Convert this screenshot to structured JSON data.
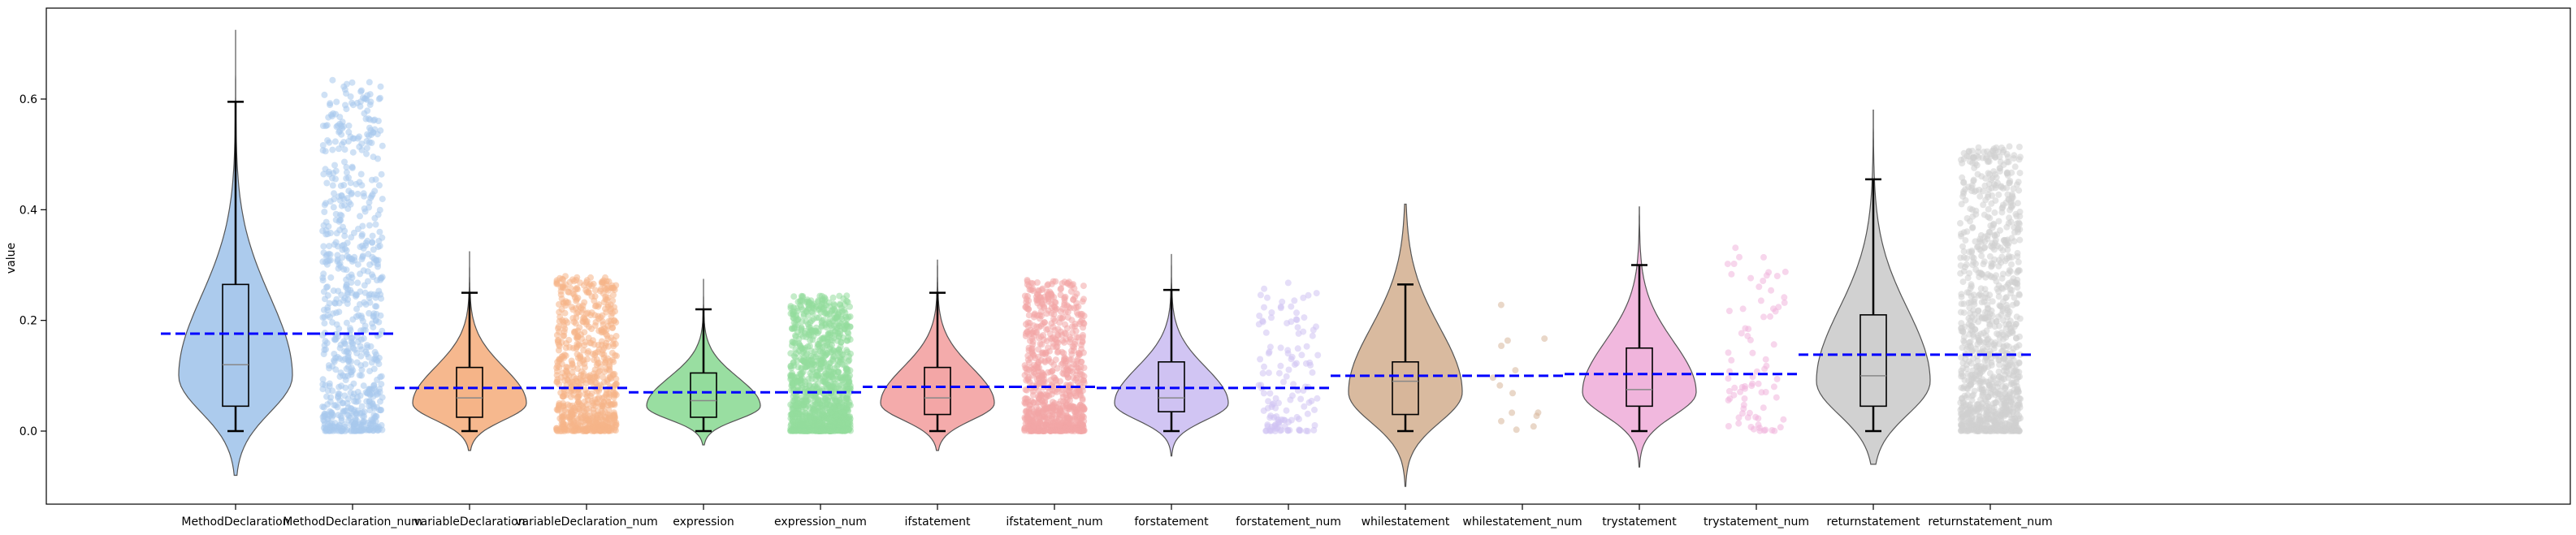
{
  "chart_data": {
    "type": "violin",
    "ylabel": "value",
    "xlabel": "",
    "ylim": [
      -0.135,
      0.765
    ],
    "yticks": [
      0.0,
      0.2,
      0.4,
      0.6
    ],
    "ytick_labels": [
      "0.0",
      "0.2",
      "0.4",
      "0.6"
    ],
    "categories": [
      "MethodDeclaration",
      "MethodDeclaration_num",
      "variableDeclaration",
      "variableDeclaration_num",
      "expression",
      "expression_num",
      "ifstatement",
      "ifstatement_num",
      "forstatement",
      "forstatement_num",
      "whilestatement",
      "whilestatement_num",
      "trystatement",
      "trystatement_num",
      "returnstatement",
      "returnstatement_num"
    ],
    "groups": [
      {
        "name": "MethodDeclaration",
        "color": "#a8c8ec",
        "mean": 0.176,
        "violin": {
          "min": -0.08,
          "max": 0.725,
          "peak": 0.1,
          "spread": 0.11
        },
        "box": {
          "whisker_low": 0.0,
          "q1": 0.045,
          "median": 0.12,
          "q3": 0.265,
          "whisker_high": 0.595
        },
        "scatter": {
          "low": 0.0,
          "high": 0.635,
          "count": 700
        }
      },
      {
        "name": "variableDeclaration",
        "color": "#f5b488",
        "mean": 0.078,
        "violin": {
          "min": -0.035,
          "max": 0.325,
          "peak": 0.05,
          "spread": 0.05
        },
        "box": {
          "whisker_low": 0.0,
          "q1": 0.025,
          "median": 0.06,
          "q3": 0.115,
          "whisker_high": 0.25
        },
        "scatter": {
          "low": 0.0,
          "high": 0.28,
          "count": 700
        }
      },
      {
        "name": "expression",
        "color": "#93dc9c",
        "mean": 0.07,
        "violin": {
          "min": -0.025,
          "max": 0.275,
          "peak": 0.045,
          "spread": 0.04
        },
        "box": {
          "whisker_low": 0.0,
          "q1": 0.025,
          "median": 0.055,
          "q3": 0.105,
          "whisker_high": 0.22
        },
        "scatter": {
          "low": 0.0,
          "high": 0.245,
          "count": 1100
        }
      },
      {
        "name": "ifstatement",
        "color": "#f3a6a6",
        "mean": 0.08,
        "violin": {
          "min": -0.035,
          "max": 0.31,
          "peak": 0.05,
          "spread": 0.05
        },
        "box": {
          "whisker_low": 0.0,
          "q1": 0.03,
          "median": 0.06,
          "q3": 0.115,
          "whisker_high": 0.25
        },
        "scatter": {
          "low": 0.0,
          "high": 0.275,
          "count": 800
        }
      },
      {
        "name": "forstatement",
        "color": "#cfc2f2",
        "mean": 0.078,
        "violin": {
          "min": -0.045,
          "max": 0.32,
          "peak": 0.05,
          "spread": 0.05
        },
        "box": {
          "whisker_low": 0.0,
          "q1": 0.035,
          "median": 0.06,
          "q3": 0.125,
          "whisker_high": 0.255
        },
        "scatter": {
          "low": 0.0,
          "high": 0.27,
          "count": 130
        }
      },
      {
        "name": "whilestatement",
        "color": "#d7b69a",
        "mean": 0.1,
        "violin": {
          "min": -0.1,
          "max": 0.41,
          "peak": 0.07,
          "spread": 0.09
        },
        "box": {
          "whisker_low": 0.0,
          "q1": 0.03,
          "median": 0.09,
          "q3": 0.125,
          "whisker_high": 0.265
        },
        "scatter": {
          "low": 0.0,
          "high": 0.31,
          "count": 14
        }
      },
      {
        "name": "trystatement",
        "color": "#f0b4dc",
        "mean": 0.103,
        "violin": {
          "min": -0.065,
          "max": 0.405,
          "peak": 0.07,
          "spread": 0.07
        },
        "box": {
          "whisker_low": 0.0,
          "q1": 0.045,
          "median": 0.075,
          "q3": 0.15,
          "whisker_high": 0.3
        },
        "scatter": {
          "low": 0.0,
          "high": 0.34,
          "count": 80
        }
      },
      {
        "name": "returnstatement",
        "color": "#cfcfcf",
        "mean": 0.138,
        "violin": {
          "min": -0.06,
          "max": 0.58,
          "peak": 0.09,
          "spread": 0.1
        },
        "box": {
          "whisker_low": 0.0,
          "q1": 0.045,
          "median": 0.1,
          "q3": 0.21,
          "whisker_high": 0.455
        },
        "scatter": {
          "low": 0.0,
          "high": 0.515,
          "count": 1000
        }
      }
    ],
    "mean_line_color": "#0000ff",
    "grid": false,
    "legend": "none"
  }
}
